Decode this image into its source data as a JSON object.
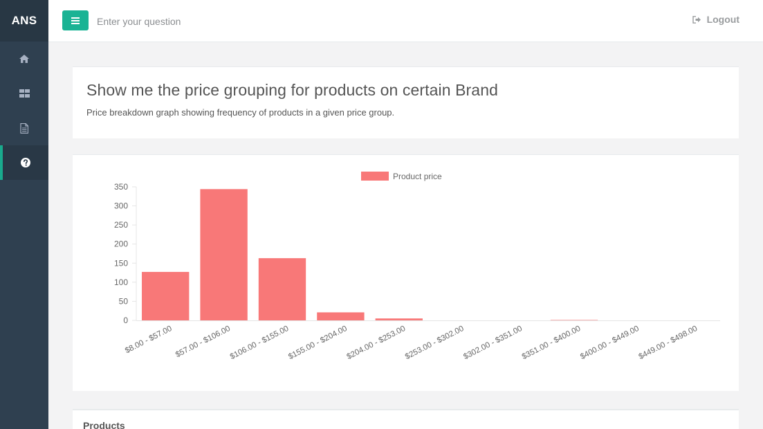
{
  "brand": "ANS",
  "nav": {
    "items": [
      {
        "icon": "home-icon"
      },
      {
        "icon": "dashboard-icon"
      },
      {
        "icon": "document-icon"
      },
      {
        "icon": "question-icon"
      }
    ]
  },
  "topbar": {
    "search_placeholder": "Enter your question",
    "logout_label": "Logout"
  },
  "page": {
    "title": "Show me the price grouping for products on certain Brand",
    "subtitle": "Price breakdown graph showing frequency of products in a given price group."
  },
  "products": {
    "title": "Products"
  },
  "colors": {
    "accent": "#1ab394",
    "sidebar": "#2f4050",
    "bar": "#f87878"
  },
  "chart_data": {
    "type": "bar",
    "legend": "Product price",
    "categories": [
      "$8.00 - $57.00",
      "$57.00 - $106.00",
      "$106.00 - $155.00",
      "$155.00 - $204.00",
      "$204.00 - $253.00",
      "$253.00 - $302.00",
      "$302.00 - $351.00",
      "$351.00 - $400.00",
      "$400.00 - $449.00",
      "$449.00 - $498.00"
    ],
    "values": [
      127,
      344,
      163,
      21,
      5,
      0,
      0,
      1,
      0,
      0
    ],
    "yticks": [
      0,
      50,
      100,
      150,
      200,
      250,
      300,
      350
    ],
    "ylim": [
      0,
      350
    ]
  }
}
